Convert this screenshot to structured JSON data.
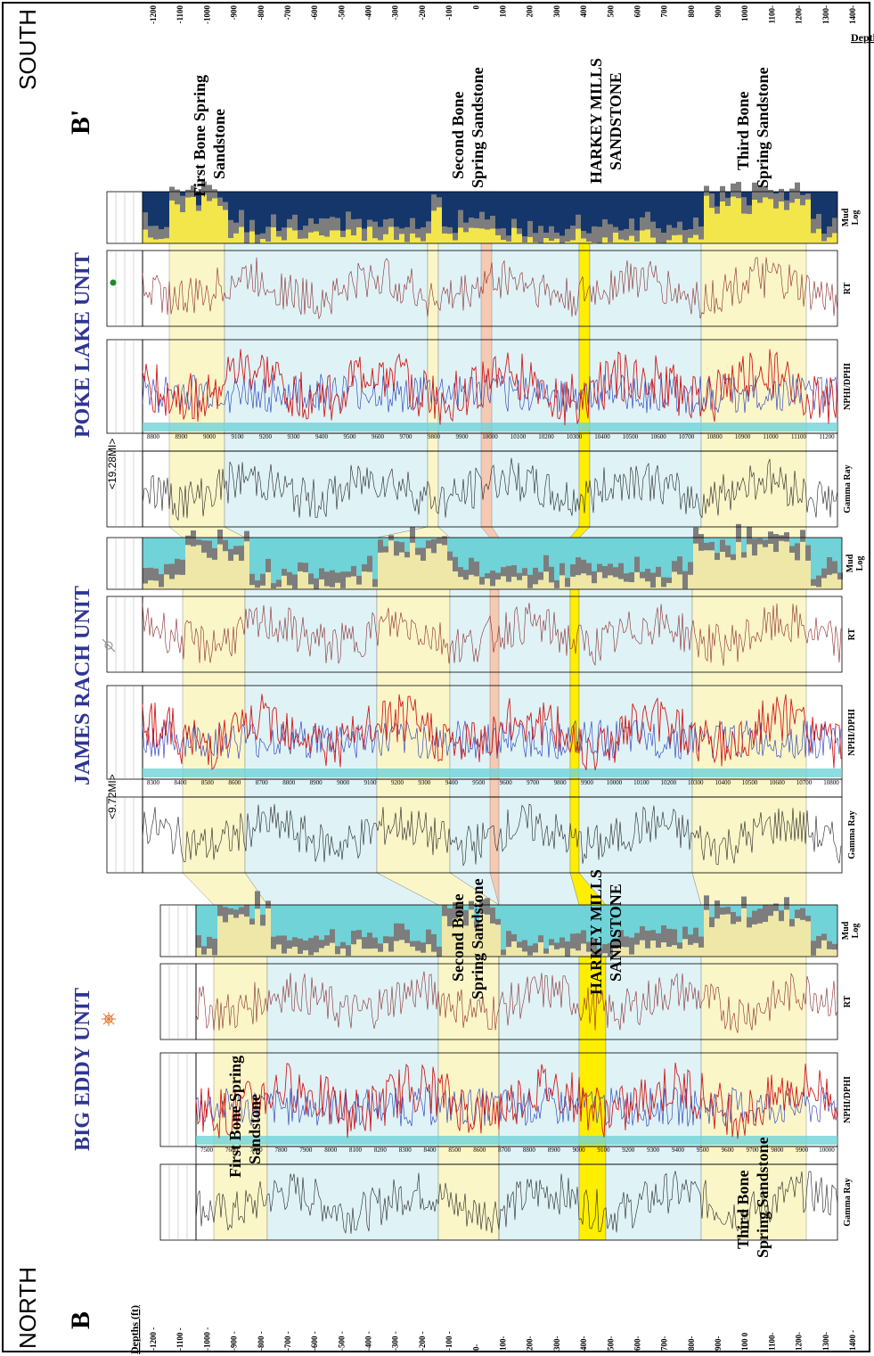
{
  "direction_left": "NORTH",
  "direction_right": "SOUTH",
  "section_left": "B",
  "section_right": "B'",
  "depth_title": "Depths (ft)",
  "depth_title_right": "Depths",
  "depth_ticks_left": [
    "-1200 -",
    "-1100 -",
    "-1000 -",
    "-900 -",
    "-800 -",
    "-700 -",
    "-600 -",
    "-500 -",
    "-400 -",
    "-300 -",
    "-200 -",
    "-100 -",
    "0-",
    "100-",
    "200-",
    "300-",
    "400-",
    "500-",
    "600-",
    "700-",
    "800-",
    "900-",
    "100 0",
    "1100-",
    "1200-",
    "1300-",
    "1400 -"
  ],
  "depth_ticks_right": [
    "-1200",
    "-1100",
    "-1000",
    "-900",
    "-800",
    "-700",
    "-600",
    "-500",
    "-400",
    "-300",
    "-200",
    "-100",
    "0",
    "100",
    "200",
    "300",
    "400",
    "500",
    "600",
    "700",
    "800",
    "900",
    "1000",
    "1100-",
    "1200-",
    "1300-",
    "1400-"
  ],
  "formations": {
    "first_bone_1": "First Bone Spring",
    "first_bone_2": "Sandstone",
    "second_bone_1": "Second Bone",
    "second_bone_2": "Spring Sandstone",
    "harkey_1": "HARKEY MILLS",
    "harkey_2": "SANDSTONE",
    "third_bone_1": "Third Bone",
    "third_bone_2": "Spring Sandstone"
  },
  "wells": [
    {
      "name": "BIG EDDY UNIT",
      "depths": [
        "7500",
        "7600",
        "7700",
        "7800",
        "7900",
        "8000",
        "8100",
        "8200",
        "8300",
        "8400",
        "8500",
        "8600",
        "8700",
        "8800",
        "8900",
        "9000",
        "9100",
        "9200",
        "9300",
        "9400",
        "9500",
        "9600",
        "9700",
        "9800",
        "9900",
        "10000"
      ]
    },
    {
      "name": "JAMES RACH UNIT",
      "depths": [
        "8300",
        "8400",
        "8500",
        "8600",
        "8700",
        "8800",
        "8900",
        "9000",
        "9100",
        "9200",
        "9300",
        "9400",
        "9500",
        "9600",
        "9700",
        "9800",
        "9900",
        "10000",
        "10100",
        "10200",
        "10300",
        "10400",
        "10500",
        "10600",
        "10700",
        "10800"
      ]
    },
    {
      "name": "POKE LAKE UNIT",
      "depths": [
        "8800",
        "8900",
        "9000",
        "9100",
        "9200",
        "9300",
        "9400",
        "9500",
        "9600",
        "9700",
        "9800",
        "9900",
        "10000",
        "10100",
        "10200",
        "10300",
        "10400",
        "10500",
        "10600",
        "10700",
        "10800",
        "10900",
        "11000",
        "11100",
        "11200"
      ]
    }
  ],
  "track_labels": {
    "gamma": "Gamma Ray",
    "nphi": "NPHI/DPHI",
    "rt": "RT",
    "mud_1": "Mud",
    "mud_2": "Log"
  },
  "distances": [
    "<9.72MI>",
    "<19.28MI>"
  ],
  "colors": {
    "sand_yellow": "#fbf6c8",
    "shale_blue": "#dff3f7",
    "harkey_yellow": "#ffee00",
    "salmon": "#f6c9b3",
    "title_blue": "#2f3592",
    "curve_red": "#d21a1a",
    "mud_cyan": "#6fd3d8",
    "mud_navy": "#14366b"
  }
}
